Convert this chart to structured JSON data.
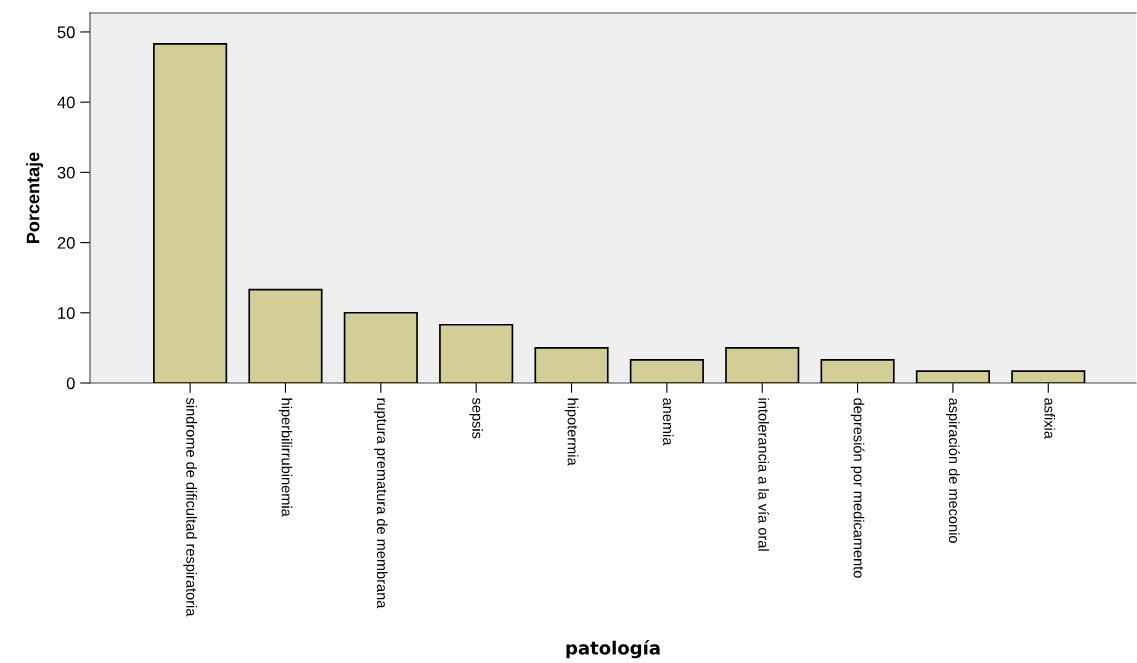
{
  "chart_data": {
    "type": "bar",
    "xlabel": "patología",
    "ylabel": "Porcentaje",
    "categories": [
      "sindrome de dificultad respiratoria",
      "hiperbilirrubinemia",
      "ruptura prematura de membrana",
      "sepsis",
      "hipotermia",
      "anemia",
      "intolerancia a la vía oral",
      "depresión por medicamento",
      "aspiración de meconio",
      "asfixia"
    ],
    "values": [
      48.3,
      13.3,
      10.0,
      8.3,
      5.0,
      3.3,
      5.0,
      3.3,
      1.7,
      1.7
    ],
    "color": "#d3cd96",
    "ylim": [
      0,
      52.7
    ],
    "yticks": [
      0,
      10,
      20,
      30,
      40,
      50
    ],
    "grid": false
  }
}
